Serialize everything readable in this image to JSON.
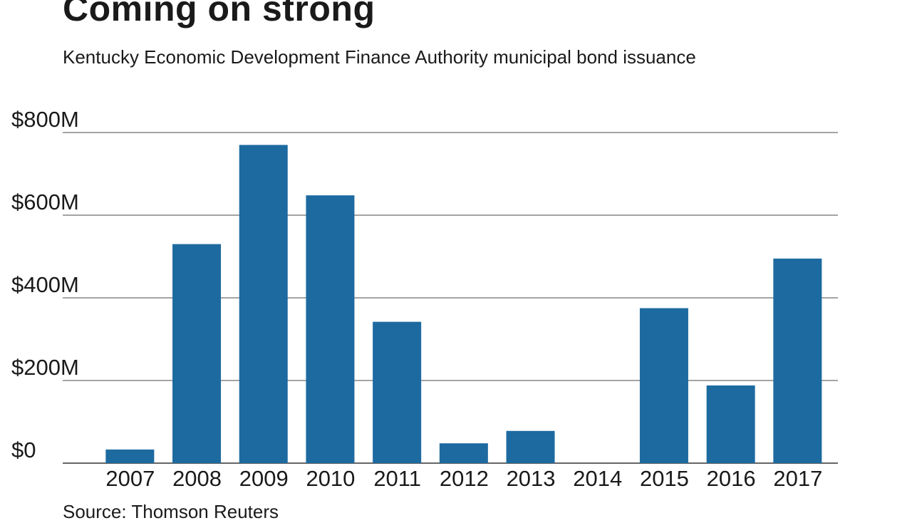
{
  "chart_data": {
    "type": "bar",
    "title": "Coming on strong",
    "subtitle": "Kentucky Economic Development Finance Authority municipal bond issuance",
    "source": "Source: Thomson Reuters",
    "categories": [
      "2007",
      "2008",
      "2009",
      "2010",
      "2011",
      "2012",
      "2013",
      "2014",
      "2015",
      "2016",
      "2017"
    ],
    "series": [
      {
        "name": "Municipal bond issuance",
        "values": [
          33,
          530,
          770,
          648,
          342,
          48,
          78,
          0,
          375,
          188,
          495
        ]
      }
    ],
    "y_ticks": [
      0,
      200,
      400,
      600,
      800
    ],
    "y_tick_labels": [
      "$0",
      "$200M",
      "$400M",
      "$600M",
      "$800M"
    ],
    "ylim": [
      0,
      800
    ],
    "xlabel": "",
    "ylabel": "",
    "grid": true,
    "colors": {
      "bar": "#1d6aa0",
      "grid": "#4a4a4a",
      "text": "#1a1a1a"
    }
  }
}
